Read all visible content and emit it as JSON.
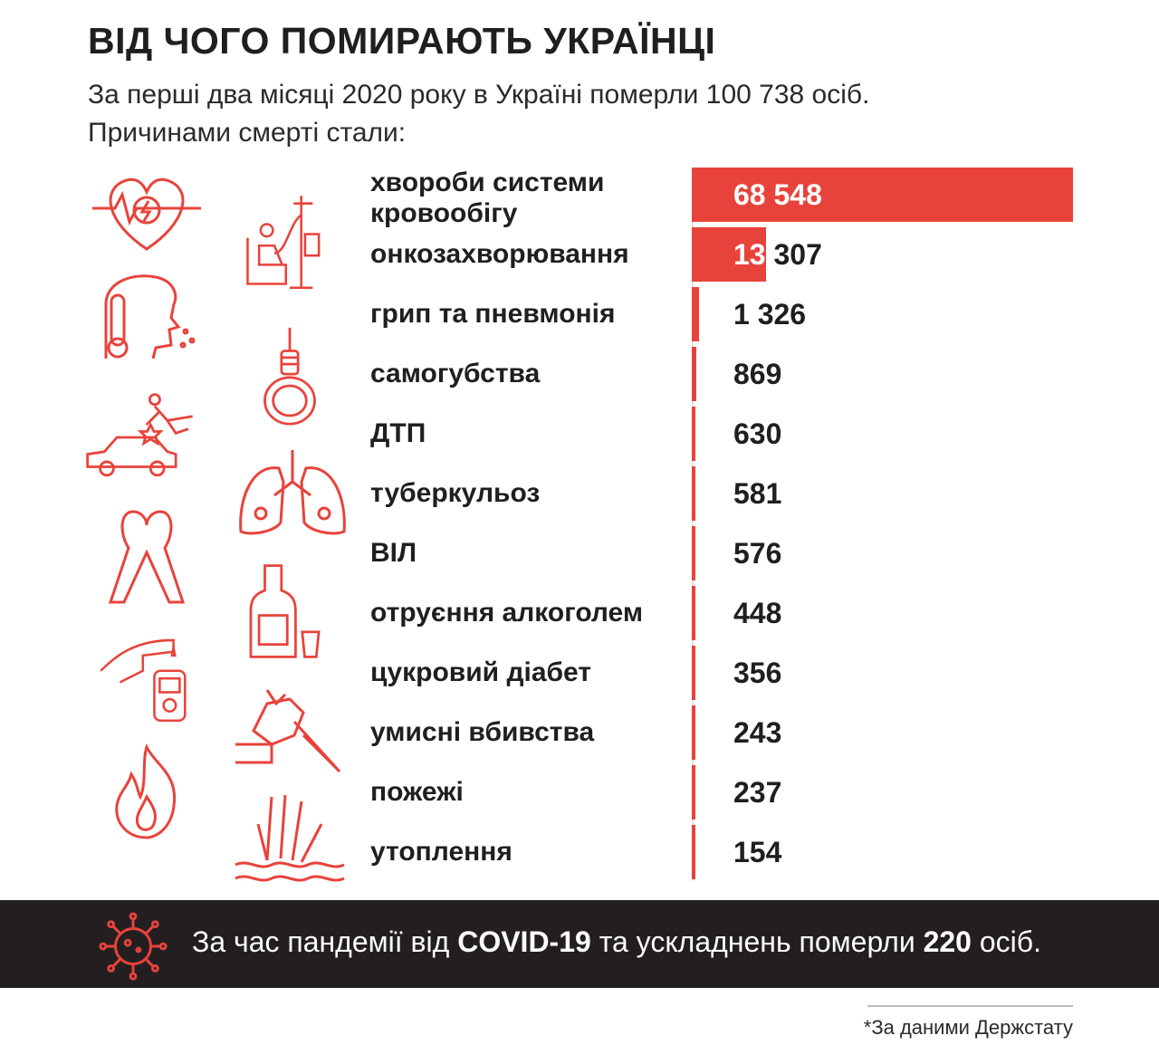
{
  "title": "ВІД ЧОГО ПОМИРАЮТЬ УКРАЇНЦІ",
  "subtitle": {
    "line1": "За перші два місяці 2020 року в Україні померли 100 738 осіб.",
    "line2": "Причинами смерті стали:"
  },
  "colors": {
    "accent": "#e8433b",
    "banner_bg": "#231f20",
    "text": "#1f1f1f"
  },
  "icons": [
    "heart-ecg-icon",
    "iv-drip-patient-icon",
    "sick-head-thermometer-icon",
    "noose-icon",
    "car-accident-icon",
    "lungs-icon",
    "awareness-ribbon-icon",
    "alcohol-bottle-icon",
    "glucose-meter-icon",
    "knife-hand-icon",
    "fire-icon",
    "drowning-hand-icon"
  ],
  "chart_data": {
    "type": "bar",
    "orientation": "horizontal",
    "categories": [
      "хвороби системи кровообігу",
      "онкозахворювання",
      "грип та пневмонія",
      "самогубства",
      "ДТП",
      "туберкульоз",
      "ВІЛ",
      "отруєння алкоголем",
      "цукровий діабет",
      "умисні вбивства",
      "пожежі",
      "утоплення"
    ],
    "values": [
      68548,
      13307,
      1326,
      869,
      630,
      581,
      576,
      448,
      356,
      243,
      237,
      154
    ],
    "value_labels": [
      "68 548",
      "13 307",
      "1 326",
      "869",
      "630",
      "581",
      "576",
      "448",
      "356",
      "243",
      "237",
      "154"
    ],
    "xlim": [
      0,
      68548
    ],
    "grid": false,
    "legend": "none"
  },
  "banner": {
    "pre": "За час пандемії від ",
    "bold1": "COVID-19",
    "mid": " та ускладнень померли ",
    "bold2": "220",
    "post": " осіб."
  },
  "source": "*За даними Держстату"
}
